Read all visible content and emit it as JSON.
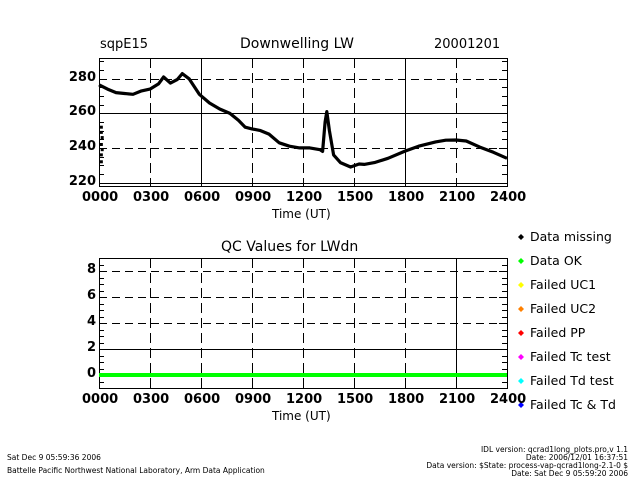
{
  "header": {
    "site": "sqpE15",
    "date": "20001201"
  },
  "chart_data": [
    {
      "type": "line",
      "title": "Downwelling LW",
      "xlabel": "Time (UT)",
      "ylabel": "",
      "xlim": [
        0,
        24
      ],
      "ylim": [
        218,
        292
      ],
      "x_tick_labels": [
        "0000",
        "0300",
        "0600",
        "0900",
        "1200",
        "1500",
        "1800",
        "2100",
        "2400"
      ],
      "y_ticks": [
        220,
        240,
        260,
        280
      ],
      "y_tick_labels": [
        "220",
        "240",
        "260",
        "280"
      ],
      "grid": true,
      "series": [
        {
          "name": "LWdn",
          "color": "#000000",
          "x": [
            0,
            0.5,
            1.0,
            1.5,
            2.0,
            2.5,
            3.0,
            3.5,
            3.8,
            4.2,
            4.6,
            4.9,
            5.3,
            5.9,
            6.5,
            7.1,
            7.7,
            8.2,
            8.6,
            9.0,
            9.5,
            10.0,
            10.6,
            11.2,
            11.8,
            12.4,
            13.0,
            13.15,
            13.3,
            13.4,
            13.55,
            13.8,
            14.2,
            14.8,
            15.3,
            15.6,
            16.2,
            17.0,
            18.0,
            18.8,
            19.8,
            20.4,
            21.0,
            21.6,
            22.4,
            23.2,
            24.0
          ],
          "y": [
            276.5,
            274,
            272,
            271.5,
            271,
            273,
            274,
            277,
            281,
            277.5,
            279.5,
            283,
            280,
            271,
            266,
            262.5,
            260,
            256,
            252,
            251,
            250,
            248,
            243,
            241,
            240,
            240,
            239,
            238,
            255,
            261,
            250,
            236,
            231.5,
            229,
            230.7,
            230.5,
            231.5,
            234,
            238.2,
            241,
            243.5,
            244.5,
            244.6,
            244,
            240.5,
            237.5,
            234
          ]
        },
        {
          "name": "Data missing markers",
          "color": "#000000",
          "x": [
            0.05,
            0.05,
            0.1,
            0.05,
            0.1,
            0.05,
            0.05
          ],
          "y": [
            252,
            249,
            246,
            242,
            239,
            236,
            232
          ]
        }
      ]
    },
    {
      "type": "line",
      "title": "QC Values for LWdn",
      "xlabel": "Time (UT)",
      "ylabel": "",
      "xlim": [
        0,
        24
      ],
      "ylim": [
        -1,
        9
      ],
      "x_tick_labels": [
        "0000",
        "0300",
        "0600",
        "0900",
        "1200",
        "1500",
        "1800",
        "2100",
        "2400"
      ],
      "y_ticks": [
        0,
        2,
        4,
        6,
        8
      ],
      "y_tick_labels": [
        "0",
        "2",
        "4",
        "6",
        "8"
      ],
      "grid": true,
      "series": [
        {
          "name": "Data OK",
          "color": "#00ff00",
          "x": [
            0,
            24
          ],
          "y": [
            0,
            0
          ]
        }
      ],
      "legend": {
        "placement": "right",
        "entries": [
          {
            "label": "Data missing",
            "color": "#000000"
          },
          {
            "label": "Data OK",
            "color": "#00ff00"
          },
          {
            "label": "Failed UC1",
            "color": "#ffff00"
          },
          {
            "label": "Failed UC2",
            "color": "#ff8000"
          },
          {
            "label": "Failed PP",
            "color": "#ff0000"
          },
          {
            "label": "Failed Tc test",
            "color": "#ff00ff"
          },
          {
            "label": "Failed Td test",
            "color": "#00ffff"
          },
          {
            "label": "Failed Tc & Td",
            "color": "#0000ff"
          }
        ]
      }
    }
  ],
  "footer": {
    "left_date": "Sat Dec  9 05:59:36 2006",
    "left_org": "Battelle Pacific Northwest National Laboratory, Arm Data Application",
    "right_lines": [
      "IDL version: qcrad1long_plots.pro,v 1.1",
      "Date: 2006/12/01 16:37:51",
      "Data version: $State: process-vap-qcrad1long-2.1-0 $",
      "Date: Sat Dec  9 05:59:20 2006"
    ]
  }
}
